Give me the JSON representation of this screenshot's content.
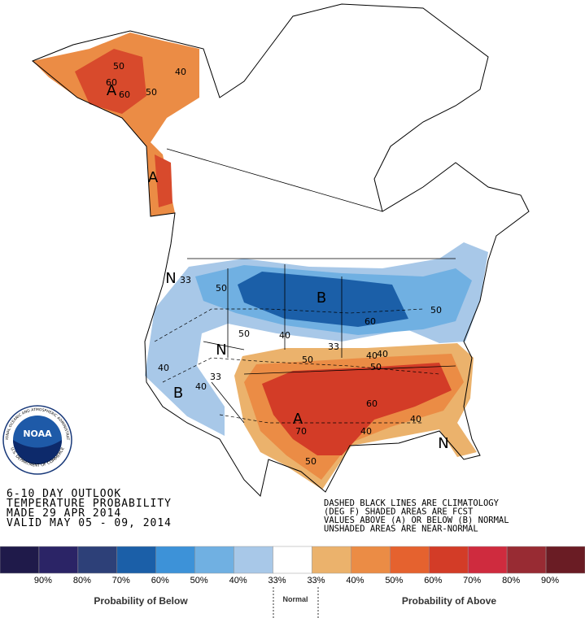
{
  "header": {
    "lines": [
      "6-10 DAY OUTLOOK",
      "TEMPERATURE PROBABILITY",
      "MADE  29 APR 2014",
      "VALID  MAY 05 - 09, 2014"
    ]
  },
  "notes": [
    "DASHED BLACK LINES ARE CLIMATOLOGY",
    "(DEG F) SHADED AREAS ARE FCST",
    "VALUES ABOVE (A) OR BELOW (B) NORMAL",
    "UNSHADED AREAS ARE NEAR-NORMAL"
  ],
  "logo": {
    "name": "NOAA",
    "ring_top": "NATIONAL OCEANIC AND ATMOSPHERIC ADMINISTRATION",
    "ring_bottom": "U.S. DEPARTMENT OF COMMERCE"
  },
  "map_labels": [
    "A",
    "60",
    "60",
    "50",
    "50",
    "40",
    "A",
    "N",
    "33",
    "50",
    "B",
    "40",
    "50",
    "60",
    "50",
    "33",
    "50",
    "40",
    "50",
    "N",
    "40",
    "B",
    "40",
    "33",
    "60",
    "40",
    "40",
    "A",
    "70",
    "50",
    "N",
    "40"
  ],
  "legend": {
    "colors": [
      "#1f1a4a",
      "#2b2466",
      "#2d4078",
      "#1b5fa8",
      "#3d92d8",
      "#70b0e2",
      "#a8c8e8",
      "#ffffff",
      "#ebb26c",
      "#eb8c45",
      "#e5622f",
      "#d33c27",
      "#cf2b3e",
      "#982b33",
      "#6a1c24"
    ],
    "labels": [
      "90%",
      "80%",
      "70%",
      "60%",
      "50%",
      "40%",
      "33%",
      "33%",
      "40%",
      "50%",
      "60%",
      "70%",
      "80%",
      "90%"
    ],
    "below": "Probability of Below",
    "normal": "Normal",
    "above": "Probability of Above"
  }
}
